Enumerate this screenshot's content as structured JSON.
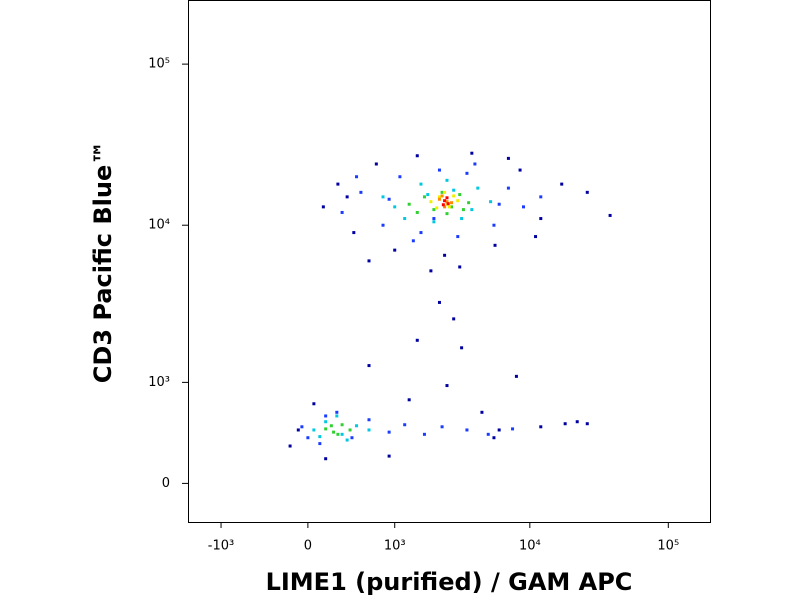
{
  "chart_data": {
    "type": "scatter",
    "xlabel": "LIME1 (purified) / GAM APC",
    "ylabel": "CD3 Pacific Blue™",
    "xscale": "biexponential",
    "yscale": "biexponential",
    "xlim": [
      -1800,
      200000
    ],
    "ylim": [
      -290,
      250000
    ],
    "xticks": [
      {
        "value": -1000,
        "label": "-10³"
      },
      0,
      {
        "value": 1000,
        "label": "10³"
      },
      {
        "value": 10000,
        "label": "10⁴"
      },
      {
        "value": 100000,
        "label": "10⁵"
      }
    ],
    "yticks": [
      0,
      {
        "value": 1000,
        "label": "10³"
      },
      {
        "value": 10000,
        "label": "10⁴"
      },
      {
        "value": 100000,
        "label": "10⁵"
      }
    ],
    "series": [
      {
        "color": "#0000a0",
        "x": [
          130,
          260,
          420,
          700,
          1000,
          1500,
          2400,
          3800,
          5600,
          8500,
          12000,
          17000,
          26000,
          38000,
          600,
          1900,
          3100,
          7000,
          350,
          11000,
          2200,
          2800,
          1500,
          3200,
          600,
          -150,
          50,
          150,
          1300,
          2500,
          4500,
          6000,
          8000,
          12000,
          18000,
          22000,
          26000,
          5500,
          -80,
          900
        ],
        "values": [
          13000,
          18000,
          9000,
          24000,
          7000,
          27000,
          6500,
          28000,
          7500,
          22000,
          11000,
          18000,
          16000,
          11500,
          6000,
          5200,
          5500,
          26000,
          15000,
          8500,
          3300,
          2600,
          1900,
          1700,
          1300,
          280,
          700,
          180,
          750,
          950,
          600,
          420,
          1100,
          450,
          480,
          500,
          480,
          350,
          420,
          200
        ]
      },
      {
        "color": "#1a3cff",
        "x": [
          300,
          500,
          800,
          1100,
          1600,
          2200,
          3000,
          4000,
          5500,
          7000,
          9000,
          450,
          900,
          1400,
          2000,
          3500,
          6000,
          12000,
          -50,
          100,
          250,
          400,
          600,
          900,
          1200,
          1700,
          2300,
          3500,
          5000,
          7500,
          0,
          150
        ],
        "values": [
          12000,
          16000,
          10000,
          20000,
          9000,
          22000,
          8500,
          24000,
          10000,
          17000,
          13000,
          20000,
          14500,
          8000,
          11000,
          21000,
          13500,
          15000,
          450,
          300,
          600,
          350,
          520,
          400,
          470,
          380,
          450,
          420,
          380,
          430,
          350,
          560
        ]
      },
      {
        "color": "#00c8e0",
        "x": [
          800,
          1200,
          1600,
          2000,
          2500,
          3200,
          4200,
          5200,
          1000,
          1800,
          2800,
          3800,
          50,
          150,
          300,
          450,
          600,
          250,
          350,
          100
        ],
        "values": [
          15000,
          11000,
          18000,
          10500,
          19000,
          11000,
          17000,
          14000,
          13000,
          15500,
          16500,
          12500,
          420,
          500,
          380,
          460,
          420,
          560,
          330,
          360
        ]
      },
      {
        "color": "#30d030",
        "x": [
          1300,
          1700,
          2000,
          2300,
          2700,
          3100,
          3600,
          1500,
          2500,
          3300,
          150,
          220,
          300,
          380,
          260,
          200
        ],
        "values": [
          13500,
          15000,
          12500,
          16000,
          13000,
          15500,
          13800,
          12000,
          11800,
          12500,
          430,
          400,
          470,
          420,
          380,
          460
        ]
      },
      {
        "color": "#f0f000",
        "x": [
          1900,
          2200,
          2500,
          2800,
          2100,
          2600,
          3000,
          2400
        ],
        "values": [
          14000,
          15000,
          13500,
          15200,
          12800,
          13000,
          14200,
          16000
        ]
      },
      {
        "color": "#ff8c00",
        "x": [
          2200,
          2500,
          2700,
          2400,
          2300
        ],
        "values": [
          14500,
          14000,
          13800,
          13000,
          15200
        ]
      },
      {
        "color": "#ff0000",
        "x": [
          2400,
          2550,
          2350,
          2500
        ],
        "values": [
          14200,
          13600,
          13400,
          14800
        ]
      }
    ]
  }
}
